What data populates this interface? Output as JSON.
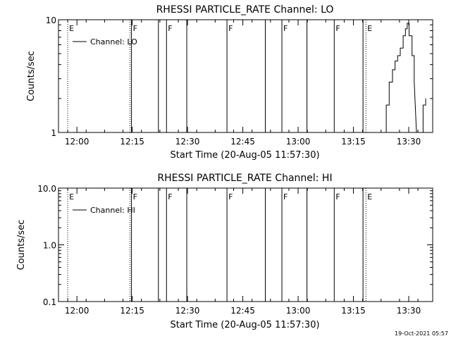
{
  "footer": {
    "timestamp": "19-Oct-2021 05:57"
  },
  "chart_data": [
    {
      "type": "line",
      "title": "RHESSI PARTICLE_RATE Channel: LO",
      "xlabel": "Start Time (20-Aug-05 11:57:30)",
      "ylabel": "Counts/sec",
      "y_scale": "log",
      "ylim": [
        1,
        10
      ],
      "y_ticks": [
        1,
        10
      ],
      "y_tick_labels": [
        "1",
        "10"
      ],
      "x_range_minutes": [
        -2.5,
        99
      ],
      "x_ticks": [
        2.5,
        17.5,
        32.5,
        47.5,
        62.5,
        77.5,
        92.5
      ],
      "x_tick_labels": [
        "12:00",
        "12:15",
        "12:30",
        "12:45",
        "13:00",
        "13:15",
        "13:30"
      ],
      "legend": {
        "label": "Channel: LO",
        "position": "top-left"
      },
      "markers": [
        {
          "x": 0,
          "style": "dotted",
          "label": "E"
        },
        {
          "x": 16.9,
          "style": "dotted",
          "label": ""
        },
        {
          "x": 17.3,
          "style": "solid",
          "label": "F"
        },
        {
          "x": 24.6,
          "style": "solid",
          "label": ""
        },
        {
          "x": 26.8,
          "style": "solid",
          "label": "F"
        },
        {
          "x": 32.3,
          "style": "solid",
          "label": ""
        },
        {
          "x": 43.2,
          "style": "solid",
          "label": "F"
        },
        {
          "x": 53.6,
          "style": "solid",
          "label": ""
        },
        {
          "x": 58.1,
          "style": "solid",
          "label": "F"
        },
        {
          "x": 64.9,
          "style": "solid",
          "label": ""
        },
        {
          "x": 72.3,
          "style": "solid",
          "label": "F"
        },
        {
          "x": 80.1,
          "style": "solid",
          "label": ""
        },
        {
          "x": 80.9,
          "style": "dotted",
          "label": "E"
        },
        {
          "x": 99,
          "style": "dotted",
          "label": ""
        }
      ],
      "series": [
        {
          "x": [
            85.5,
            86.4,
            86.4,
            87.2,
            87.2,
            88.1,
            88.1,
            88.8,
            88.8,
            89.5,
            89.5,
            90.2,
            90.2,
            91.0,
            91.0,
            91.6,
            91.6,
            92.1,
            92.1,
            92.6,
            92.6,
            93.4,
            93.4,
            94.0,
            94.0,
            94.6
          ],
          "y": [
            1.0,
            1.0,
            1.75,
            1.75,
            2.8,
            2.8,
            3.6,
            3.6,
            4.3,
            4.3,
            4.8,
            4.8,
            5.6,
            5.6,
            7.2,
            7.2,
            8.3,
            8.3,
            9.3,
            9.3,
            7.2,
            7.2,
            4.8,
            4.8,
            2.8,
            1.0
          ]
        },
        {
          "x": [
            96.4,
            96.4,
            97.1,
            97.1
          ],
          "y": [
            1.0,
            1.75,
            1.75,
            2.0
          ]
        }
      ]
    },
    {
      "type": "line",
      "title": "RHESSI PARTICLE_RATE Channel: HI",
      "xlabel": "Start Time (20-Aug-05 11:57:30)",
      "ylabel": "Counts/sec",
      "y_scale": "log",
      "ylim": [
        0.1,
        10
      ],
      "y_ticks": [
        0.1,
        1,
        10
      ],
      "y_tick_labels": [
        "0.1",
        "1.0",
        "10.0"
      ],
      "x_range_minutes": [
        -2.5,
        99
      ],
      "x_ticks": [
        2.5,
        17.5,
        32.5,
        47.5,
        62.5,
        77.5,
        92.5
      ],
      "x_tick_labels": [
        "12:00",
        "12:15",
        "12:30",
        "12:45",
        "13:00",
        "13:15",
        "13:30"
      ],
      "legend": {
        "label": "Channel: HI",
        "position": "top-left"
      },
      "markers": [
        {
          "x": 0,
          "style": "dotted",
          "label": "E"
        },
        {
          "x": 16.9,
          "style": "dotted",
          "label": ""
        },
        {
          "x": 17.3,
          "style": "solid",
          "label": "F"
        },
        {
          "x": 24.6,
          "style": "solid",
          "label": ""
        },
        {
          "x": 26.8,
          "style": "solid",
          "label": "F"
        },
        {
          "x": 32.3,
          "style": "solid",
          "label": ""
        },
        {
          "x": 43.2,
          "style": "solid",
          "label": "F"
        },
        {
          "x": 53.6,
          "style": "solid",
          "label": ""
        },
        {
          "x": 58.1,
          "style": "solid",
          "label": "F"
        },
        {
          "x": 64.9,
          "style": "solid",
          "label": ""
        },
        {
          "x": 72.3,
          "style": "solid",
          "label": "F"
        },
        {
          "x": 80.1,
          "style": "solid",
          "label": ""
        },
        {
          "x": 80.9,
          "style": "dotted",
          "label": "E"
        },
        {
          "x": 99,
          "style": "dotted",
          "label": ""
        }
      ],
      "series": []
    }
  ]
}
